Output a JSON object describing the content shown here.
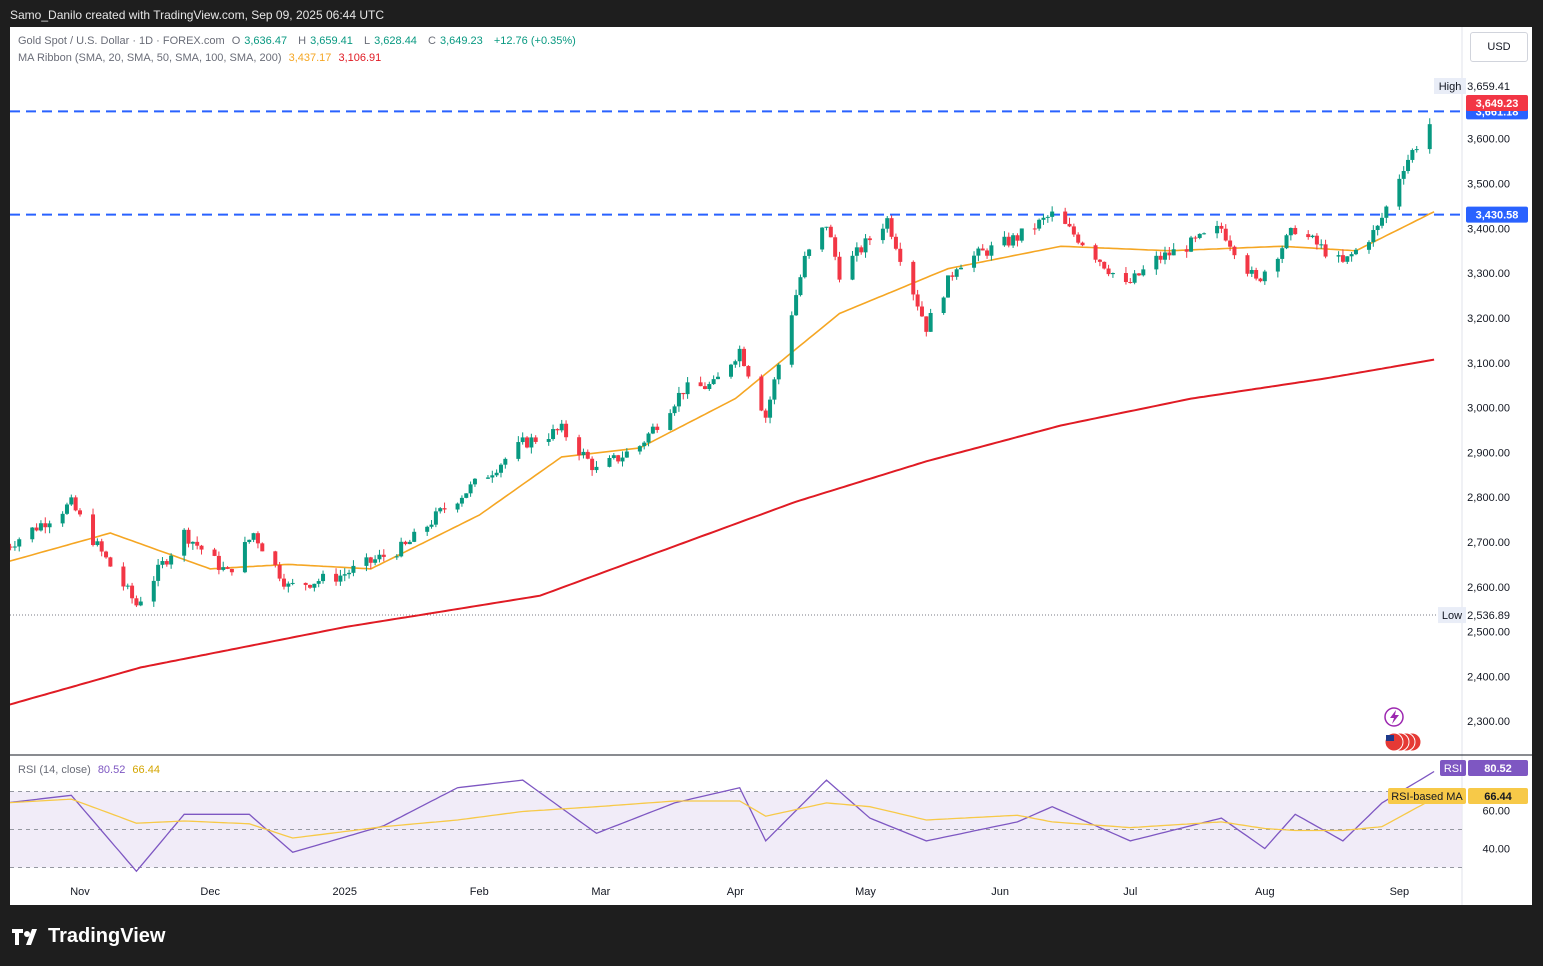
{
  "header": {
    "author_line": "Samo_Danilo created with TradingView.com, Sep 09, 2025 06:44 UTC"
  },
  "legend": {
    "symbol": "Gold Spot / U.S. Dollar · 1D · FOREX.com",
    "o_label": "O",
    "open": "3,636.47",
    "h_label": "H",
    "high": "3,659.41",
    "l_label": "L",
    "low": "3,628.44",
    "c_label": "C",
    "close": "3,649.23",
    "change": "+12.76 (+0.35%)",
    "ma_label": "MA Ribbon (SMA, 20, SMA, 50, SMA, 100, SMA, 200)",
    "ma20_value": "3,437.17",
    "ma200_value": "3,106.91",
    "rsi_label": "RSI (14, close)",
    "rsi_value": "80.52",
    "rsi_ma_value": "66.44"
  },
  "currency_button": "USD",
  "colors": {
    "up": "#089981",
    "down": "#f23645",
    "ma20": "#f5a623",
    "ma200": "#e01b24",
    "level": "#2962ff",
    "rsi": "#7e57c2",
    "rsi_ma": "#f7c948"
  },
  "chart_data": {
    "type": "candlestick",
    "title": "Gold Spot / U.S. Dollar · 1D · FOREX.com",
    "x_ticks": [
      "Nov",
      "Dec",
      "2025",
      "Feb",
      "Mar",
      "Apr",
      "May",
      "Jun",
      "Jul",
      "Aug",
      "Sep"
    ],
    "y_ticks": [
      2300,
      2400,
      2500,
      2600,
      2700,
      2800,
      2900,
      3000,
      3100,
      3200,
      3300,
      3400,
      3500,
      3600
    ],
    "ylim": [
      2200,
      3720
    ],
    "price_path": [
      [
        "Oct 15",
        2690
      ],
      [
        "Oct 23",
        2740
      ],
      [
        "Oct 30",
        2785
      ],
      [
        "Nov 5",
        2690
      ],
      [
        "Nov 14",
        2560
      ],
      [
        "Nov 20",
        2650
      ],
      [
        "Nov 25",
        2720
      ],
      [
        "Dec 5",
        2630
      ],
      [
        "Dec 11",
        2720
      ],
      [
        "Dec 19",
        2600
      ],
      [
        "Dec 31",
        2625
      ],
      [
        "Jan 15",
        2690
      ],
      [
        "Jan 24",
        2775
      ],
      [
        "Feb 4",
        2860
      ],
      [
        "Feb 11",
        2920
      ],
      [
        "Feb 20",
        2950
      ],
      [
        "Feb 28",
        2860
      ],
      [
        "Mar 10",
        2915
      ],
      [
        "Mar 20",
        3040
      ],
      [
        "Mar 27",
        3050
      ],
      [
        "Apr 2",
        3130
      ],
      [
        "Apr 8",
        2980
      ],
      [
        "Apr 17",
        3330
      ],
      [
        "Apr 22",
        3410
      ],
      [
        "Apr 25",
        3300
      ],
      [
        "May 6",
        3420
      ],
      [
        "May 15",
        3180
      ],
      [
        "May 22",
        3320
      ],
      [
        "Jun 5",
        3380
      ],
      [
        "Jun 13",
        3430
      ],
      [
        "Jun 20",
        3370
      ],
      [
        "Jun 30",
        3270
      ],
      [
        "Jul 7",
        3330
      ],
      [
        "Jul 14",
        3360
      ],
      [
        "Jul 22",
        3400
      ],
      [
        "Jul 30",
        3280
      ],
      [
        "Aug 8",
        3400
      ],
      [
        "Aug 19",
        3320
      ],
      [
        "Aug 27",
        3400
      ],
      [
        "Sep 2",
        3540
      ],
      [
        "Sep 9",
        3649
      ]
    ],
    "series": [
      {
        "name": "MA Ribbon SMA 20",
        "last": 3437.17,
        "values": [
          [
            "Oct 15",
            2655
          ],
          [
            "Nov 8",
            2720
          ],
          [
            "Dec 1",
            2640
          ],
          [
            "Dec 19",
            2650
          ],
          [
            "Jan 7",
            2640
          ],
          [
            "Feb 1",
            2760
          ],
          [
            "Feb 20",
            2890
          ],
          [
            "Mar 10",
            2910
          ],
          [
            "Apr 1",
            3020
          ],
          [
            "Apr 25",
            3210
          ],
          [
            "May 20",
            3310
          ],
          [
            "Jun 15",
            3360
          ],
          [
            "Jul 10",
            3350
          ],
          [
            "Aug 5",
            3360
          ],
          [
            "Aug 22",
            3350
          ],
          [
            "Sep 9",
            3437
          ]
        ]
      },
      {
        "name": "MA Ribbon SMA 200",
        "last": 3106.91,
        "values": [
          [
            "Oct 15",
            2335
          ],
          [
            "Nov 15",
            2420
          ],
          [
            "Jan 1",
            2510
          ],
          [
            "Feb 15",
            2580
          ],
          [
            "Mar 15",
            2680
          ],
          [
            "Apr 15",
            2790
          ],
          [
            "May 15",
            2880
          ],
          [
            "Jun 15",
            2960
          ],
          [
            "Jul 15",
            3020
          ],
          [
            "Aug 15",
            3065
          ],
          [
            "Sep 9",
            3107
          ]
        ]
      }
    ],
    "levels": [
      {
        "label": "3,661.18",
        "value": 3661.18,
        "style": "dashed"
      },
      {
        "label": "3,430.58",
        "value": 3430.58,
        "style": "dashed"
      },
      {
        "label": "2,536.89",
        "value": 2536.89,
        "style": "dotted",
        "tag": "Low"
      }
    ],
    "high_marker": {
      "tag": "High",
      "value": "3,659.41"
    },
    "last_price": "3,649.23",
    "rsi": {
      "name": "RSI (14, close)",
      "value": 80.52,
      "ma_name": "RSI-based MA",
      "ma_value": 66.44,
      "y_ticks": [
        "60.00",
        "40.00"
      ],
      "band": [
        30,
        70
      ],
      "ylim": [
        20,
        90
      ],
      "values": [
        [
          "Oct 15",
          64
        ],
        [
          "Oct 30",
          68
        ],
        [
          "Nov 14",
          28
        ],
        [
          "Nov 25",
          58
        ],
        [
          "Dec 10",
          58
        ],
        [
          "Dec 20",
          38
        ],
        [
          "Jan 10",
          52
        ],
        [
          "Jan 27",
          72
        ],
        [
          "Feb 11",
          76
        ],
        [
          "Feb 28",
          48
        ],
        [
          "Mar 18",
          64
        ],
        [
          "Apr 2",
          72
        ],
        [
          "Apr 8",
          44
        ],
        [
          "Apr 22",
          76
        ],
        [
          "May 2",
          56
        ],
        [
          "May 15",
          44
        ],
        [
          "Jun 5",
          54
        ],
        [
          "Jun 13",
          62
        ],
        [
          "Jul 1",
          44
        ],
        [
          "Jul 22",
          56
        ],
        [
          "Aug 1",
          40
        ],
        [
          "Aug 8",
          58
        ],
        [
          "Aug 19",
          44
        ],
        [
          "Aug 28",
          64
        ],
        [
          "Sep 9",
          80.5
        ]
      ]
    }
  }
}
